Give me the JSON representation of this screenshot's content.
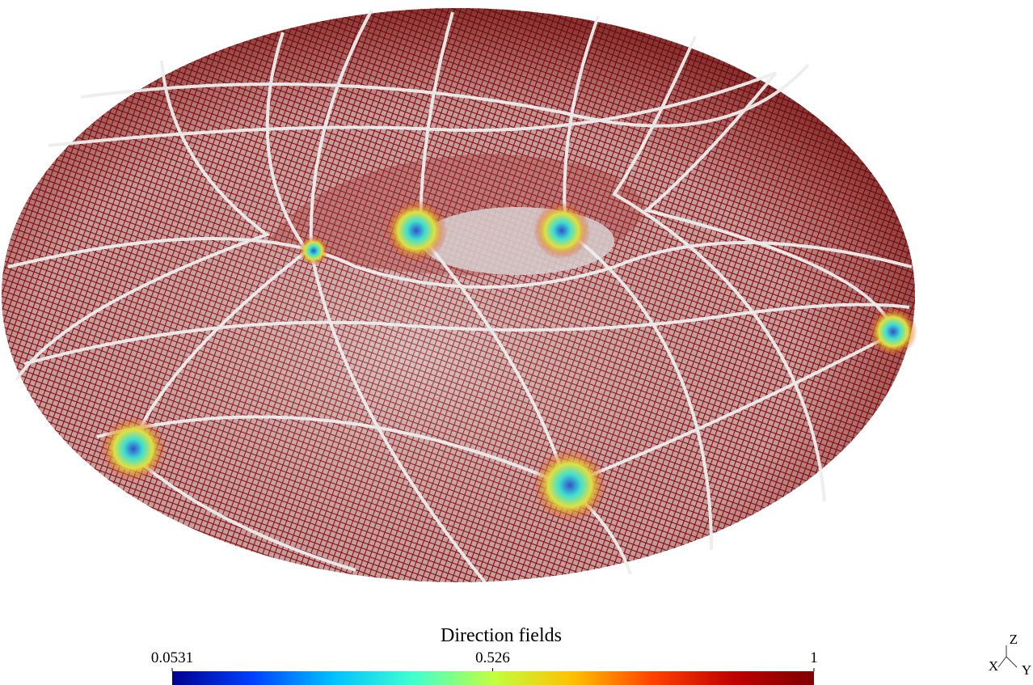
{
  "colorbar": {
    "title": "Direction fields",
    "range": [
      0.0531,
      1
    ],
    "ticks": [
      0.0531,
      0.526,
      1
    ],
    "colormap": [
      "#00008f",
      "#0040ff",
      "#00c0ff",
      "#40ffd0",
      "#c0ff40",
      "#ffc000",
      "#ff4000",
      "#c00000",
      "#800000"
    ]
  },
  "axes": {
    "z": "Z",
    "x": "X",
    "y": "Y"
  }
}
